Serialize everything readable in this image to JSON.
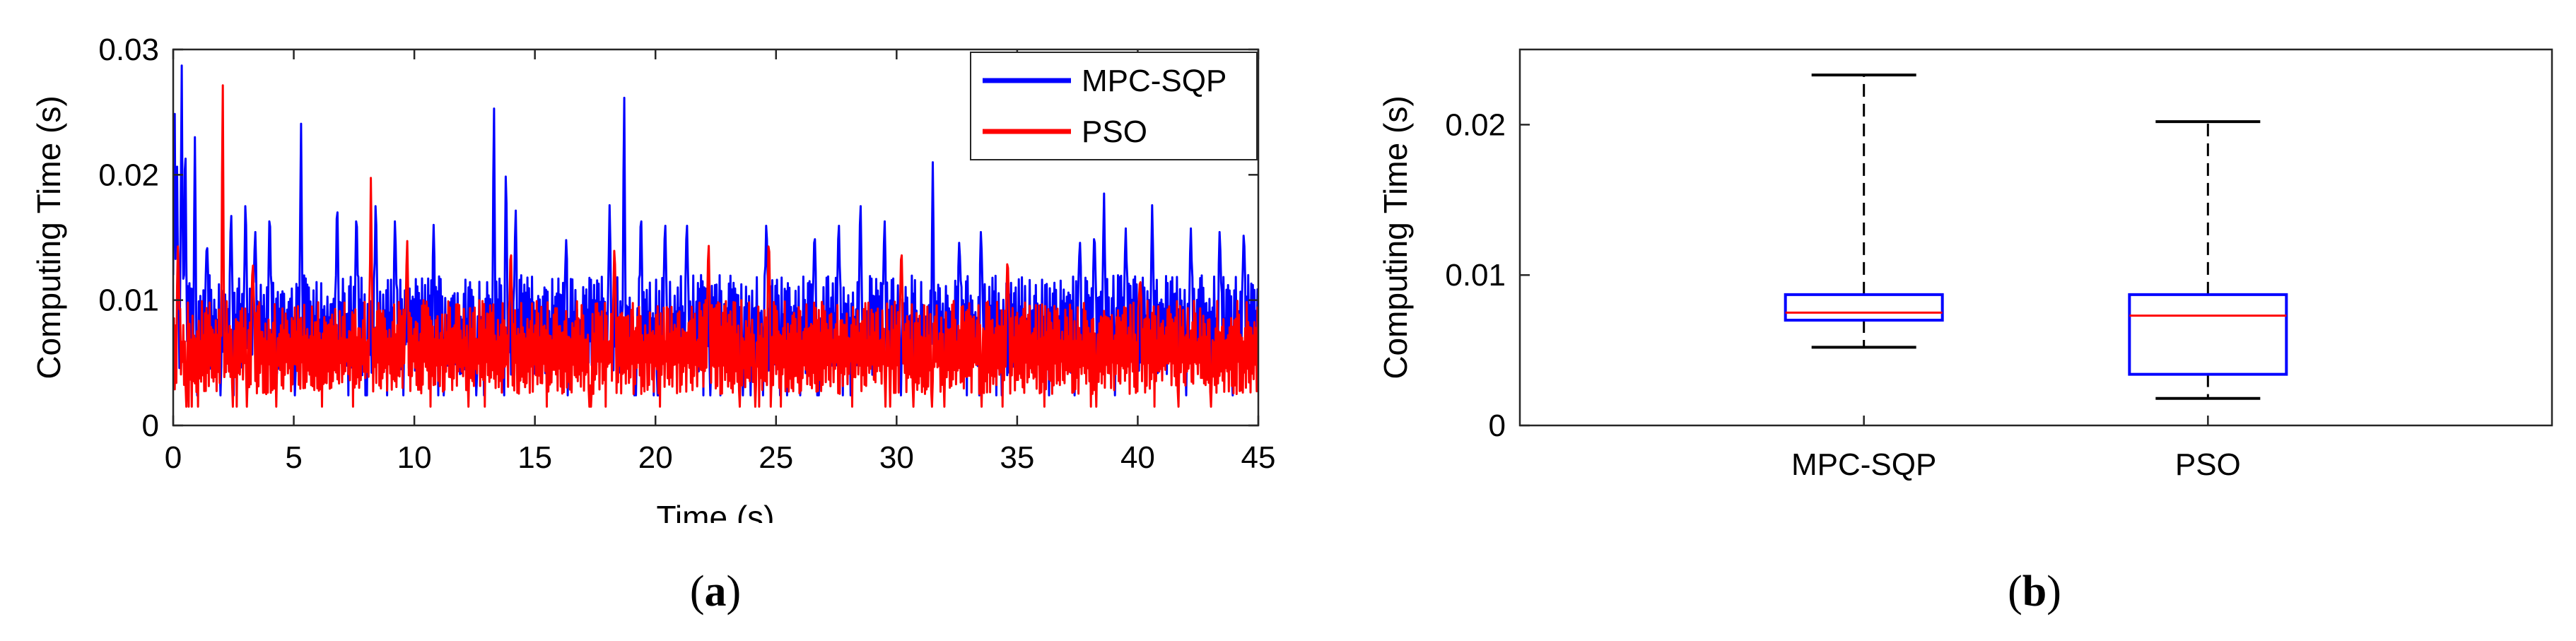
{
  "chart_data": [
    {
      "type": "line",
      "panel": "a",
      "xlabel": "Time (s)",
      "ylabel": "Computing Time (s)",
      "xlim": [
        0,
        45
      ],
      "ylim": [
        0,
        0.03
      ],
      "xticks": [
        "0",
        "5",
        "10",
        "15",
        "20",
        "25",
        "30",
        "35",
        "40",
        "45"
      ],
      "yticks": [
        "0",
        "0.01",
        "0.02",
        "0.03"
      ],
      "legend_position": "top-right",
      "series": [
        {
          "name": "MPC-SQP",
          "color": "#0000ff",
          "baseline": [
            0.004,
            0.012
          ],
          "peaks": [
            [
              0.05,
              0.03
            ],
            [
              0.15,
              0.023
            ],
            [
              0.35,
              0.03
            ],
            [
              0.5,
              0.025
            ],
            [
              0.9,
              0.023
            ],
            [
              1.4,
              0.015
            ],
            [
              2.4,
              0.018
            ],
            [
              3.0,
              0.019
            ],
            [
              3.4,
              0.016
            ],
            [
              4.0,
              0.018
            ],
            [
              5.3,
              0.025
            ],
            [
              6.8,
              0.019
            ],
            [
              7.6,
              0.018
            ],
            [
              8.4,
              0.019
            ],
            [
              9.2,
              0.017
            ],
            [
              10.8,
              0.016
            ],
            [
              13.3,
              0.0275
            ],
            [
              13.8,
              0.022
            ],
            [
              14.2,
              0.018
            ],
            [
              16.3,
              0.015
            ],
            [
              18.1,
              0.018
            ],
            [
              18.7,
              0.0285
            ],
            [
              19.4,
              0.018
            ],
            [
              20.4,
              0.017
            ],
            [
              21.3,
              0.017
            ],
            [
              24.6,
              0.017
            ],
            [
              26.6,
              0.016
            ],
            [
              27.6,
              0.017
            ],
            [
              28.5,
              0.019
            ],
            [
              29.5,
              0.017
            ],
            [
              31.5,
              0.021
            ],
            [
              32.6,
              0.015
            ],
            [
              33.5,
              0.016
            ],
            [
              37.6,
              0.015
            ],
            [
              38.2,
              0.016
            ],
            [
              38.6,
              0.019
            ],
            [
              39.5,
              0.016
            ],
            [
              40.6,
              0.018
            ],
            [
              42.2,
              0.016
            ],
            [
              43.4,
              0.016
            ],
            [
              44.4,
              0.016
            ]
          ]
        },
        {
          "name": "PSO",
          "color": "#ff0000",
          "baseline": [
            0.0025,
            0.01
          ],
          "peaks": [
            [
              0.2,
              0.015
            ],
            [
              2.05,
              0.03
            ],
            [
              3.3,
              0.0135
            ],
            [
              8.2,
              0.0205
            ],
            [
              9.7,
              0.0155
            ],
            [
              14.0,
              0.015
            ],
            [
              18.3,
              0.015
            ],
            [
              22.2,
              0.0155
            ],
            [
              24.7,
              0.016
            ],
            [
              30.2,
              0.015
            ],
            [
              34.6,
              0.014
            ],
            [
              40.1,
              0.012
            ]
          ]
        }
      ]
    },
    {
      "type": "box",
      "panel": "b",
      "xlabel": "",
      "ylabel": "Computing Time (s)",
      "ylim": [
        0,
        0.025
      ],
      "yticks": [
        "0",
        "0.01",
        "0.02"
      ],
      "categories": [
        "MPC-SQP",
        "PSO"
      ],
      "boxes": [
        {
          "name": "MPC-SQP",
          "whisker_low": 0.0052,
          "q1": 0.007,
          "median": 0.0075,
          "q3": 0.0087,
          "whisker_high": 0.0233
        },
        {
          "name": "PSO",
          "whisker_low": 0.0018,
          "q1": 0.0034,
          "median": 0.0073,
          "q3": 0.0087,
          "whisker_high": 0.0202
        }
      ],
      "box_color": "#0000ff",
      "median_color": "#ff0000"
    }
  ],
  "captions": {
    "a": {
      "open": "(",
      "letter": "a",
      "close": ")"
    },
    "b": {
      "open": "(",
      "letter": "b",
      "close": ")"
    }
  }
}
